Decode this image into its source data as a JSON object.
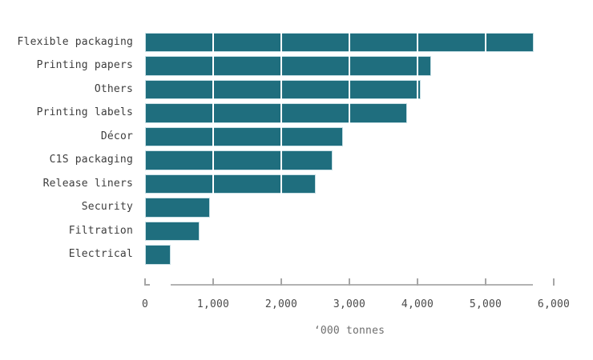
{
  "chart_data": {
    "type": "bar",
    "orientation": "horizontal",
    "title": "",
    "categories": [
      "Flexible packaging",
      "Printing papers",
      "Others",
      "Printing labels",
      "Décor",
      "C1S packaging",
      "Release liners",
      "Security",
      "Filtration",
      "Electrical"
    ],
    "values": [
      5700,
      4200,
      4050,
      3850,
      2900,
      2750,
      2500,
      950,
      800,
      380
    ],
    "xlabel": "‘000 tonnes",
    "ylabel": "",
    "xlim": [
      0,
      6000
    ],
    "xticks": [
      0,
      1000,
      2000,
      3000,
      4000,
      5000,
      6000
    ],
    "xtick_labels": [
      "0",
      "1,000",
      "2,000",
      "3,000",
      "4,000",
      "5,000",
      "6,000"
    ],
    "grid": "white vertical gridlines drawn over bars at each 1,000 interval",
    "legend": "none",
    "axis_note": "axis baseline spans only from the minimum bar value to the maximum bar value; standalone ticks at 0 and 6,000",
    "colors": {
      "bar_fill": "#1f6e7e",
      "bar_border": "#c9e0e6",
      "gridline": "#ffffff",
      "axis_line": "#b3b3b3",
      "tick_mark": "#a6a6a6",
      "category_label": "#3d3d3d",
      "tick_label": "#4a4a4a",
      "axis_title": "#6e6e6e",
      "background": "#ffffff"
    }
  }
}
